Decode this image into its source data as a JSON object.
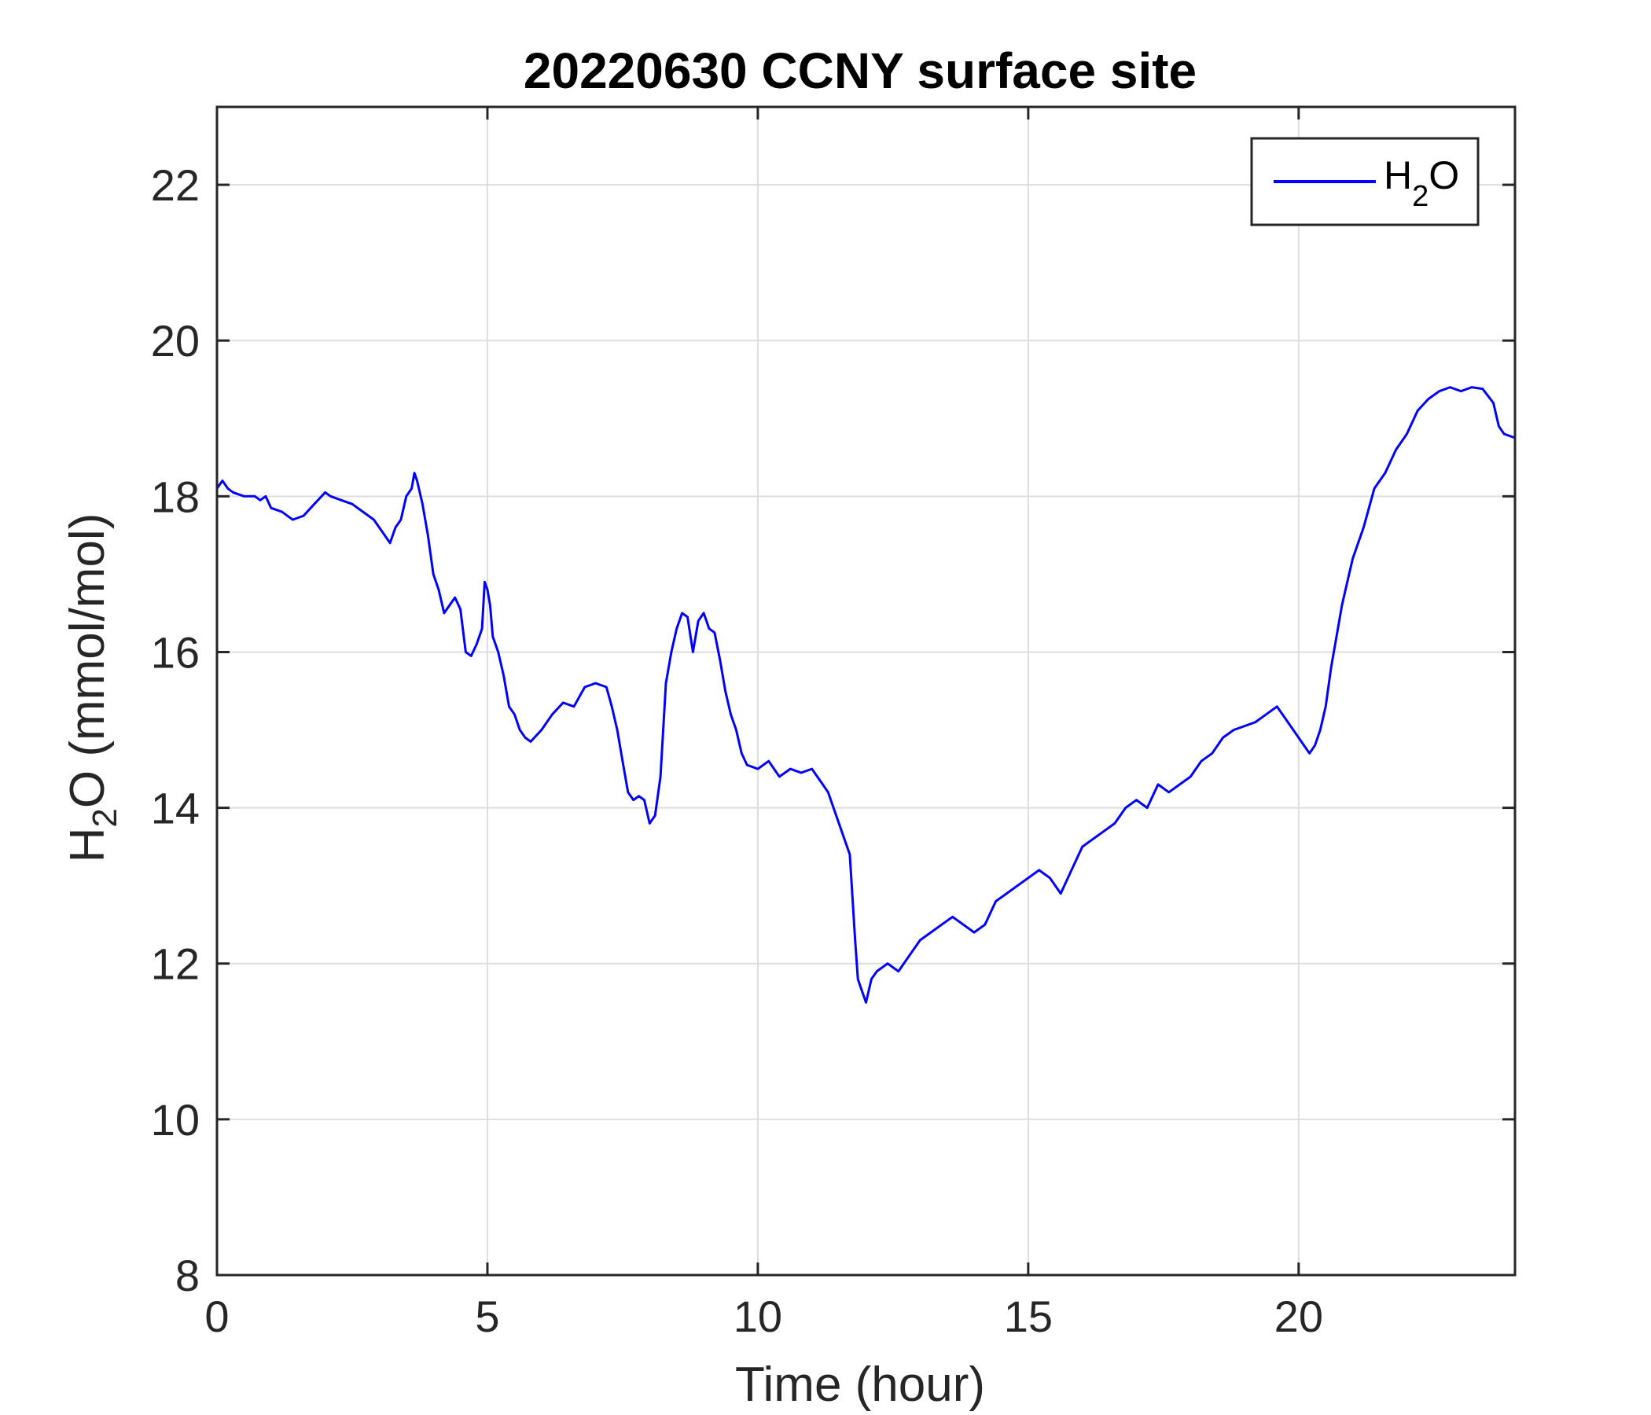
{
  "chart_data": {
    "type": "line",
    "title": "20220630 CCNY surface site",
    "xlabel": "Time (hour)",
    "ylabel": {
      "pre": "H",
      "sub": "2",
      "post": "O (mmol/mol)"
    },
    "xlim": [
      0,
      24
    ],
    "ylim": [
      8,
      23
    ],
    "xticks": [
      0,
      5,
      10,
      15,
      20
    ],
    "yticks": [
      8,
      10,
      12,
      14,
      16,
      18,
      20,
      22
    ],
    "grid": true,
    "legend_position": "top-right",
    "series": [
      {
        "name": {
          "pre": "H",
          "sub": "2",
          "post": "O"
        },
        "color": "#0000ff",
        "x": [
          0,
          0.1,
          0.2,
          0.3,
          0.5,
          0.7,
          0.8,
          0.9,
          1.0,
          1.2,
          1.4,
          1.6,
          1.8,
          2.0,
          2.1,
          2.3,
          2.5,
          2.7,
          2.9,
          3.0,
          3.1,
          3.2,
          3.3,
          3.4,
          3.5,
          3.6,
          3.65,
          3.7,
          3.8,
          3.9,
          4.0,
          4.1,
          4.2,
          4.3,
          4.4,
          4.5,
          4.6,
          4.7,
          4.8,
          4.9,
          4.95,
          5.0,
          5.05,
          5.1,
          5.2,
          5.3,
          5.4,
          5.5,
          5.6,
          5.7,
          5.8,
          6.0,
          6.2,
          6.4,
          6.6,
          6.8,
          7.0,
          7.2,
          7.3,
          7.4,
          7.5,
          7.6,
          7.7,
          7.8,
          7.9,
          8.0,
          8.1,
          8.2,
          8.3,
          8.4,
          8.5,
          8.6,
          8.7,
          8.8,
          8.9,
          9.0,
          9.1,
          9.2,
          9.3,
          9.4,
          9.5,
          9.6,
          9.7,
          9.8,
          10.0,
          10.2,
          10.4,
          10.6,
          10.8,
          11.0,
          11.2,
          11.3,
          11.4,
          11.5,
          11.6,
          11.7,
          11.8,
          11.85,
          11.9,
          12.0,
          12.1,
          12.2,
          12.4,
          12.6,
          12.8,
          13.0,
          13.2,
          13.4,
          13.6,
          13.8,
          14.0,
          14.2,
          14.4,
          14.6,
          14.8,
          15.0,
          15.2,
          15.4,
          15.6,
          15.8,
          16.0,
          16.2,
          16.4,
          16.6,
          16.8,
          17.0,
          17.2,
          17.4,
          17.6,
          17.8,
          18.0,
          18.2,
          18.4,
          18.6,
          18.8,
          19.0,
          19.2,
          19.4,
          19.6,
          19.8,
          20.0,
          20.2,
          20.3,
          20.4,
          20.5,
          20.6,
          20.7,
          20.8,
          20.9,
          21.0,
          21.2,
          21.4,
          21.6,
          21.8,
          22.0,
          22.2,
          22.4,
          22.6,
          22.8,
          23.0,
          23.2,
          23.4,
          23.6,
          23.7,
          23.8,
          24.0
        ],
        "y": [
          18.1,
          18.2,
          18.1,
          18.05,
          18.0,
          18.0,
          17.95,
          18.0,
          17.85,
          17.8,
          17.7,
          17.75,
          17.9,
          18.05,
          18.0,
          17.95,
          17.9,
          17.8,
          17.7,
          17.6,
          17.5,
          17.4,
          17.6,
          17.7,
          18.0,
          18.1,
          18.3,
          18.2,
          17.9,
          17.5,
          17.0,
          16.8,
          16.5,
          16.6,
          16.7,
          16.55,
          16.0,
          15.95,
          16.1,
          16.3,
          16.9,
          16.8,
          16.6,
          16.2,
          16.0,
          15.7,
          15.3,
          15.2,
          15.0,
          14.9,
          14.85,
          15.0,
          15.2,
          15.35,
          15.3,
          15.55,
          15.6,
          15.55,
          15.3,
          15.0,
          14.6,
          14.2,
          14.1,
          14.15,
          14.1,
          13.8,
          13.9,
          14.4,
          15.6,
          16.0,
          16.3,
          16.5,
          16.45,
          16.0,
          16.4,
          16.5,
          16.3,
          16.25,
          15.9,
          15.5,
          15.2,
          15.0,
          14.7,
          14.55,
          14.5,
          14.6,
          14.4,
          14.5,
          14.45,
          14.5,
          14.3,
          14.2,
          14.0,
          13.8,
          13.6,
          13.4,
          12.3,
          11.8,
          11.7,
          11.5,
          11.8,
          11.9,
          12.0,
          11.9,
          12.1,
          12.3,
          12.4,
          12.5,
          12.6,
          12.5,
          12.4,
          12.5,
          12.8,
          12.9,
          13.0,
          13.1,
          13.2,
          13.1,
          12.9,
          13.2,
          13.5,
          13.6,
          13.7,
          13.8,
          14.0,
          14.1,
          14.0,
          14.3,
          14.2,
          14.3,
          14.4,
          14.6,
          14.7,
          14.9,
          15.0,
          15.05,
          15.1,
          15.2,
          15.3,
          15.1,
          14.9,
          14.7,
          14.8,
          15.0,
          15.3,
          15.8,
          16.2,
          16.6,
          16.9,
          17.2,
          17.6,
          18.1,
          18.3,
          18.6,
          18.8,
          19.1,
          19.25,
          19.35,
          19.4,
          19.35,
          19.4,
          19.38,
          19.2,
          18.9,
          18.8,
          18.75
        ]
      }
    ]
  }
}
